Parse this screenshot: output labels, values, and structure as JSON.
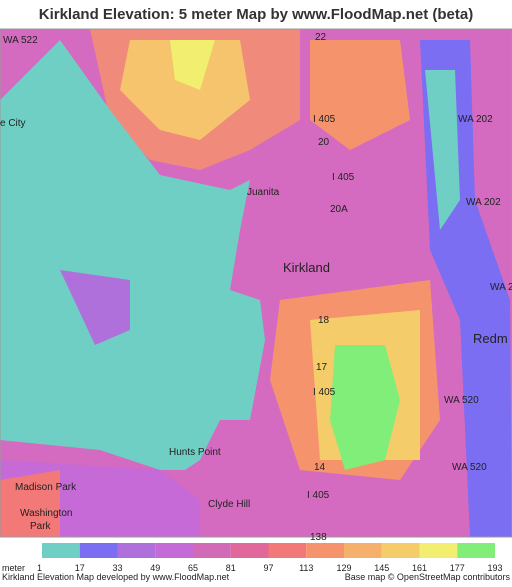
{
  "header": {
    "title": "Kirkland Elevation: 5 meter Map by www.FloodMap.net (beta)"
  },
  "map": {
    "labels": [
      "WA 522",
      "22",
      "I 405",
      "WA 202",
      "e City",
      "20",
      "I 405",
      "Juanita",
      "20A",
      "WA 202",
      "Kirkland",
      "WA 2",
      "18",
      "Redm",
      "17",
      "I 405",
      "WA 520",
      "Hunts Point",
      "14",
      "WA 520",
      "Madison Park",
      "Washington",
      "Park",
      "Clyde Hill",
      "I 405",
      "138"
    ]
  },
  "legend": {
    "unit": "meter",
    "values": [
      1,
      17,
      33,
      49,
      65,
      81,
      97,
      113,
      129,
      145,
      161,
      177,
      193
    ],
    "colors": [
      "#6fcfc4",
      "#7b6ef2",
      "#b070dc",
      "#c56ad6",
      "#d26ab8",
      "#e0689a",
      "#f37878",
      "#f5946c",
      "#f5b06c",
      "#f5cc6a",
      "#f2ee70",
      "#80ee78"
    ]
  },
  "footer": {
    "left": "Kirkland Elevation Map developed by www.FloodMap.net",
    "right": "Base map © OpenStreetMap contributors"
  }
}
